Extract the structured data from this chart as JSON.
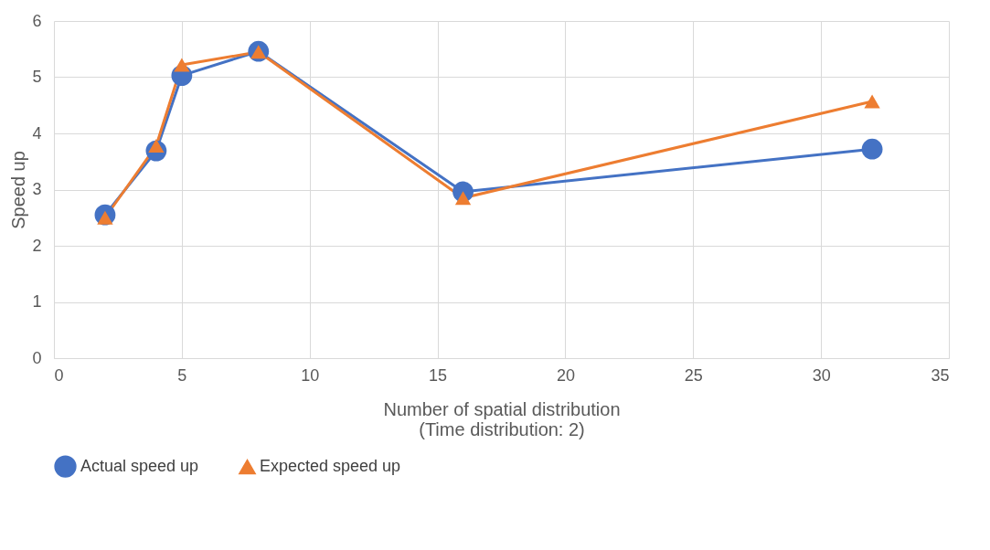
{
  "chart_data": {
    "type": "line",
    "xlabel": "Number of spatial distribution\n(Time distribution: 2)",
    "ylabel": "Speed up",
    "xlim": [
      0,
      35
    ],
    "xticks": [
      0,
      5,
      10,
      15,
      20,
      25,
      30,
      35
    ],
    "ylim": [
      0,
      6
    ],
    "yticks": [
      0,
      1,
      2,
      3,
      4,
      5,
      6
    ],
    "grid": true,
    "legend": "bottom",
    "series": [
      {
        "name": "Actual speed up",
        "color": "#4472c4",
        "marker": "circle",
        "x": [
          2,
          4,
          5,
          8,
          16,
          32
        ],
        "values": [
          2.55,
          3.69,
          5.03,
          5.46,
          2.96,
          3.72
        ]
      },
      {
        "name": "Expected speed up",
        "color": "#ed7d31",
        "marker": "triangle",
        "x": [
          2,
          4,
          5,
          8,
          16,
          32
        ],
        "values": [
          2.5,
          3.78,
          5.22,
          5.45,
          2.85,
          4.57
        ]
      }
    ]
  }
}
